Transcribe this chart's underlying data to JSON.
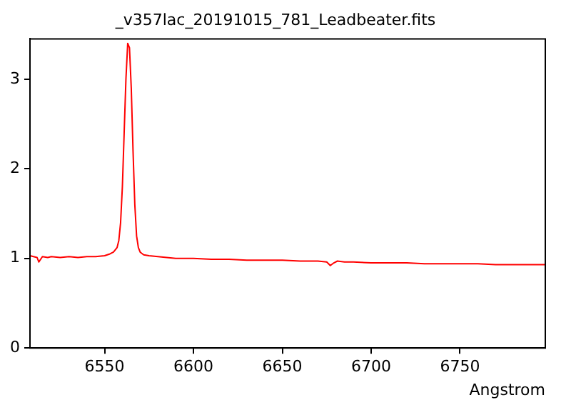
{
  "chart_data": {
    "type": "line",
    "title": "_v357lac_20191015_781_Leadbeater.fits",
    "xlabel": "Angstrom",
    "x": [
      6508,
      6510,
      6512,
      6513,
      6515,
      6518,
      6520,
      6525,
      6530,
      6535,
      6540,
      6545,
      6550,
      6553,
      6555,
      6557,
      6558,
      6559,
      6560,
      6561,
      6562,
      6563,
      6564,
      6565,
      6566,
      6567,
      6568,
      6569,
      6570,
      6572,
      6575,
      6580,
      6585,
      6590,
      6600,
      6610,
      6620,
      6630,
      6640,
      6650,
      6660,
      6670,
      6675,
      6677,
      6679,
      6681,
      6685,
      6690,
      6700,
      6710,
      6720,
      6730,
      6740,
      6750,
      6760,
      6770,
      6780,
      6790,
      6798
    ],
    "series": [
      {
        "color": "#ff0000",
        "values": [
          1.03,
          1.02,
          1.01,
          0.96,
          1.02,
          1.01,
          1.02,
          1.01,
          1.02,
          1.01,
          1.02,
          1.02,
          1.03,
          1.05,
          1.07,
          1.12,
          1.2,
          1.4,
          1.8,
          2.4,
          3.0,
          3.4,
          3.35,
          2.9,
          2.2,
          1.6,
          1.25,
          1.12,
          1.07,
          1.04,
          1.03,
          1.02,
          1.01,
          1.0,
          1.0,
          0.99,
          0.99,
          0.98,
          0.98,
          0.98,
          0.97,
          0.97,
          0.96,
          0.92,
          0.95,
          0.97,
          0.96,
          0.96,
          0.95,
          0.95,
          0.95,
          0.94,
          0.94,
          0.94,
          0.94,
          0.93,
          0.93,
          0.93,
          0.93
        ]
      }
    ],
    "xlim": [
      6508,
      6798
    ],
    "xticks": [
      6550,
      6600,
      6650,
      6700,
      6750
    ],
    "ylim": [
      0,
      3.45
    ],
    "yticks": [
      0,
      1,
      2,
      3
    ],
    "grid": false,
    "legend": false,
    "marker": "none",
    "line_style": "solid"
  }
}
